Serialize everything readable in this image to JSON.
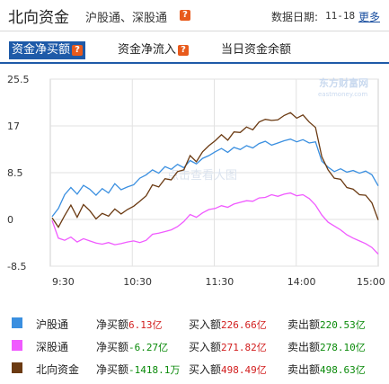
{
  "header": {
    "title": "北向资金",
    "subtitle": "沪股通、深股通",
    "help_mark": "?",
    "date_label": "数据日期:",
    "date_value": "11-18",
    "more_link": "更多"
  },
  "tabs": [
    {
      "label": "资金净买额",
      "help": "?",
      "active": true
    },
    {
      "label": "资金净流入",
      "help": "?",
      "active": false
    },
    {
      "label": "当日资金余额",
      "help": "",
      "active": false
    }
  ],
  "watermark": {
    "text": "东方财富网",
    "subtext": "eastmoney.com",
    "center_text": "点击查看大图"
  },
  "chart_data": {
    "type": "line",
    "y_ticks": [
      "25.5",
      "17",
      "8.5",
      "0",
      "-8.5"
    ],
    "x_ticks": [
      "9:30",
      "10:30",
      "11:30",
      "14:00",
      "15:00"
    ],
    "ylim": [
      -8.5,
      25.5
    ],
    "grid": true,
    "series": [
      {
        "name": "沪股通",
        "color": "#3a8fe0",
        "values": [
          0.5,
          2,
          4.5,
          5.8,
          4.6,
          6.2,
          5.5,
          4.4,
          5.6,
          4.8,
          6.5,
          5.4,
          5.9,
          6.3,
          7.5,
          8.1,
          9,
          8.4,
          9.6,
          9.1,
          10,
          9.4,
          10.7,
          10.1,
          11.1,
          11.6,
          12.3,
          12.9,
          12.2,
          13.1,
          12.7,
          13.4,
          13,
          13.8,
          14.2,
          13.5,
          13.9,
          14.3,
          14.6,
          14.1,
          14.5,
          13.9,
          14.1,
          10.6,
          9.5,
          8.7,
          9.2,
          8.6,
          8.9,
          8.4,
          8.8,
          8.1,
          6.1
        ]
      },
      {
        "name": "深股通",
        "color": "#f05aff",
        "values": [
          -0.2,
          -3.4,
          -3.8,
          -3.2,
          -4.1,
          -3.5,
          -3.9,
          -4.3,
          -4.5,
          -4.2,
          -4.6,
          -4.4,
          -4.1,
          -3.9,
          -4.2,
          -3.8,
          -2.7,
          -2.5,
          -2.2,
          -1.9,
          -1.3,
          -0.4,
          0.9,
          0.4,
          1.2,
          1.8,
          2,
          2.5,
          2.2,
          2.8,
          3.1,
          3.4,
          3.3,
          3.9,
          4,
          4.5,
          4.2,
          4.6,
          4.8,
          4.3,
          4.5,
          3.8,
          2.6,
          0.8,
          -0.5,
          -1.2,
          -1.9,
          -2.8,
          -3.4,
          -3.9,
          -4.4,
          -5.1,
          -6.3
        ]
      },
      {
        "name": "北向资金",
        "color": "#6b3a12",
        "values": [
          0.3,
          -1.4,
          0.7,
          2.6,
          0.4,
          2.7,
          1.6,
          0.1,
          1.1,
          0.6,
          1.9,
          1,
          1.8,
          2.4,
          3.3,
          4.3,
          6.3,
          5.9,
          7.4,
          7.2,
          8.7,
          9,
          11.6,
          10.5,
          12.3,
          13.4,
          14.3,
          15.4,
          14.4,
          15.9,
          15.8,
          16.8,
          16.3,
          17.7,
          18.2,
          18,
          18.1,
          18.9,
          19.4,
          18.4,
          19,
          17.7,
          16.7,
          11.4,
          9,
          7.5,
          7.3,
          5.8,
          5.5,
          4.5,
          4.4,
          3,
          -0.1
        ]
      }
    ]
  },
  "legend": [
    {
      "name": "沪股通",
      "color": "#3a8fe0",
      "net_label": "净买额",
      "net_value": "6.13亿",
      "net_sign": "red",
      "buy_label": "买入额",
      "buy_value": "226.66亿",
      "sell_label": "卖出额",
      "sell_value": "220.53亿"
    },
    {
      "name": "深股通",
      "color": "#f05aff",
      "net_label": "净买额",
      "net_value": "-6.27亿",
      "net_sign": "green",
      "buy_label": "买入额",
      "buy_value": "271.82亿",
      "sell_label": "卖出额",
      "sell_value": "278.10亿"
    },
    {
      "name": "北向资金",
      "color": "#6b3a12",
      "net_label": "净买额",
      "net_value": "-1418.1万",
      "net_sign": "green",
      "buy_label": "买入额",
      "buy_value": "498.49亿",
      "sell_label": "卖出额",
      "sell_value": "498.63亿"
    }
  ]
}
